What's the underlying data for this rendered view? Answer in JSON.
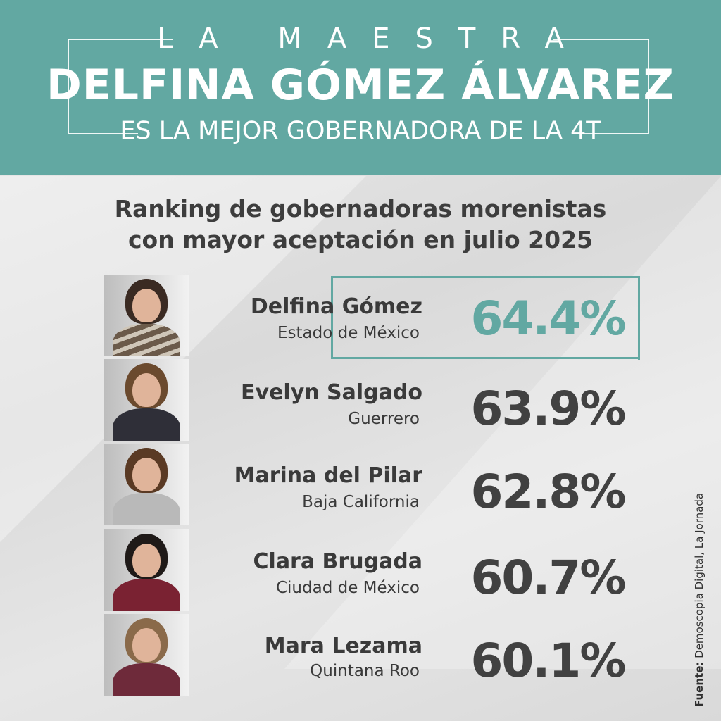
{
  "header": {
    "kicker": "LA MAESTRA",
    "headline": "DELFINA GÓMEZ ÁLVAREZ",
    "subline": "ES LA MEJOR GOBERNADORA DE LA 4T",
    "color": "#62a8a2"
  },
  "title": {
    "line1": "Ranking de gobernadoras morenistas",
    "line2": "con mayor aceptación en julio 2025"
  },
  "ranking": [
    {
      "name": "Delfina Gómez",
      "state": "Estado de México",
      "value": "64.4%",
      "highlight": true
    },
    {
      "name": "Evelyn Salgado",
      "state": "Guerrero",
      "value": "63.9%"
    },
    {
      "name": "Marina del Pilar",
      "state": "Baja California",
      "value": "62.8%"
    },
    {
      "name": "Clara Brugada",
      "state": "Ciudad de México",
      "value": "60.7%"
    },
    {
      "name": "Mara Lezama",
      "state": "Quintana Roo",
      "value": "60.1%"
    }
  ],
  "source": {
    "label": "Fuente:",
    "text": "Demoscopia Digital, La Jornada"
  }
}
